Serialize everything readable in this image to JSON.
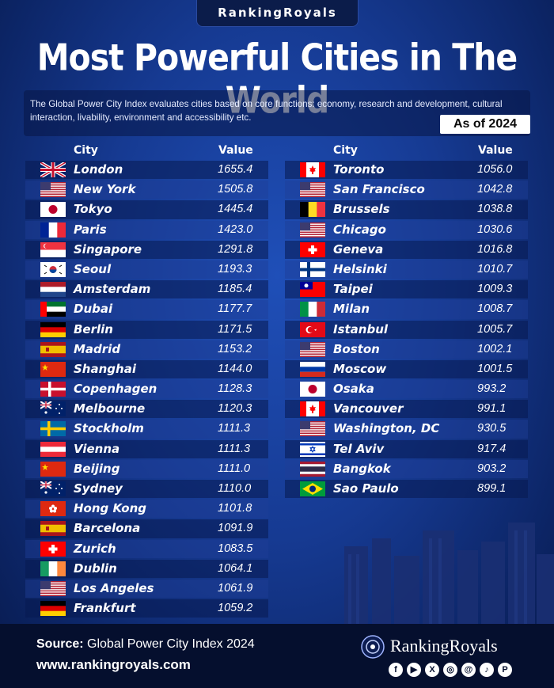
{
  "brand": "RankingRoyals",
  "title": "Most Powerful Cities in The World",
  "description": "The Global Power City Index evaluates cities based on core functions: economy, research and development, cultural interaction, livability, environment and accessibility etc.",
  "as_of": "As of 2024",
  "headers": {
    "city": "City",
    "value": "Value"
  },
  "chart_data": {
    "type": "table",
    "columns": [
      "City",
      "Value"
    ],
    "left": [
      {
        "city": "London",
        "value": "1655.4",
        "flag": "uk"
      },
      {
        "city": "New York",
        "value": "1505.8",
        "flag": "us"
      },
      {
        "city": "Tokyo",
        "value": "1445.4",
        "flag": "jp"
      },
      {
        "city": "Paris",
        "value": "1423.0",
        "flag": "fr"
      },
      {
        "city": "Singapore",
        "value": "1291.8",
        "flag": "sg"
      },
      {
        "city": "Seoul",
        "value": "1193.3",
        "flag": "kr"
      },
      {
        "city": "Amsterdam",
        "value": "1185.4",
        "flag": "nl"
      },
      {
        "city": "Dubai",
        "value": "1177.7",
        "flag": "ae"
      },
      {
        "city": "Berlin",
        "value": "1171.5",
        "flag": "de"
      },
      {
        "city": "Madrid",
        "value": "1153.2",
        "flag": "es"
      },
      {
        "city": "Shanghai",
        "value": "1144.0",
        "flag": "cn"
      },
      {
        "city": "Copenhagen",
        "value": "1128.3",
        "flag": "dk"
      },
      {
        "city": "Melbourne",
        "value": "1120.3",
        "flag": "au"
      },
      {
        "city": "Stockholm",
        "value": "1111.3",
        "flag": "se"
      },
      {
        "city": "Vienna",
        "value": "1111.3",
        "flag": "at"
      },
      {
        "city": "Beijing",
        "value": "1111.0",
        "flag": "cn"
      },
      {
        "city": "Sydney",
        "value": "1110.0",
        "flag": "au"
      },
      {
        "city": "Hong Kong",
        "value": "1101.8",
        "flag": "hk"
      },
      {
        "city": "Barcelona",
        "value": "1091.9",
        "flag": "es"
      },
      {
        "city": "Zurich",
        "value": "1083.5",
        "flag": "ch"
      },
      {
        "city": "Dublin",
        "value": "1064.1",
        "flag": "ie"
      },
      {
        "city": "Los Angeles",
        "value": "1061.9",
        "flag": "us"
      },
      {
        "city": "Frankfurt",
        "value": "1059.2",
        "flag": "de"
      }
    ],
    "right": [
      {
        "city": "Toronto",
        "value": "1056.0",
        "flag": "ca"
      },
      {
        "city": "San Francisco",
        "value": "1042.8",
        "flag": "us"
      },
      {
        "city": "Brussels",
        "value": "1038.8",
        "flag": "be"
      },
      {
        "city": "Chicago",
        "value": "1030.6",
        "flag": "us"
      },
      {
        "city": "Geneva",
        "value": "1016.8",
        "flag": "ch"
      },
      {
        "city": "Helsinki",
        "value": "1010.7",
        "flag": "fi"
      },
      {
        "city": "Taipei",
        "value": "1009.3",
        "flag": "tw"
      },
      {
        "city": "Milan",
        "value": "1008.7",
        "flag": "it"
      },
      {
        "city": "Istanbul",
        "value": "1005.7",
        "flag": "tr"
      },
      {
        "city": "Boston",
        "value": "1002.1",
        "flag": "us"
      },
      {
        "city": "Moscow",
        "value": "1001.5",
        "flag": "ru"
      },
      {
        "city": "Osaka",
        "value": "993.2",
        "flag": "jp"
      },
      {
        "city": "Vancouver",
        "value": "991.1",
        "flag": "ca"
      },
      {
        "city": "Washington, DC",
        "value": "930.5",
        "flag": "us"
      },
      {
        "city": "Tel Aviv",
        "value": "917.4",
        "flag": "il"
      },
      {
        "city": "Bangkok",
        "value": "903.2",
        "flag": "th"
      },
      {
        "city": "Sao Paulo",
        "value": "899.1",
        "flag": "br"
      }
    ]
  },
  "footer": {
    "source_label": "Source:",
    "source_text": " Global Power City Index 2024",
    "website": "www.rankingroyals.com",
    "logo_text": "RankingRoyals",
    "social_icons": [
      "facebook-icon",
      "youtube-icon",
      "x-icon",
      "instagram-icon",
      "threads-icon",
      "tiktok-icon",
      "pinterest-icon"
    ],
    "social_glyphs": [
      "f",
      "▶",
      "X",
      "◎",
      "@",
      "♪",
      "P"
    ]
  }
}
